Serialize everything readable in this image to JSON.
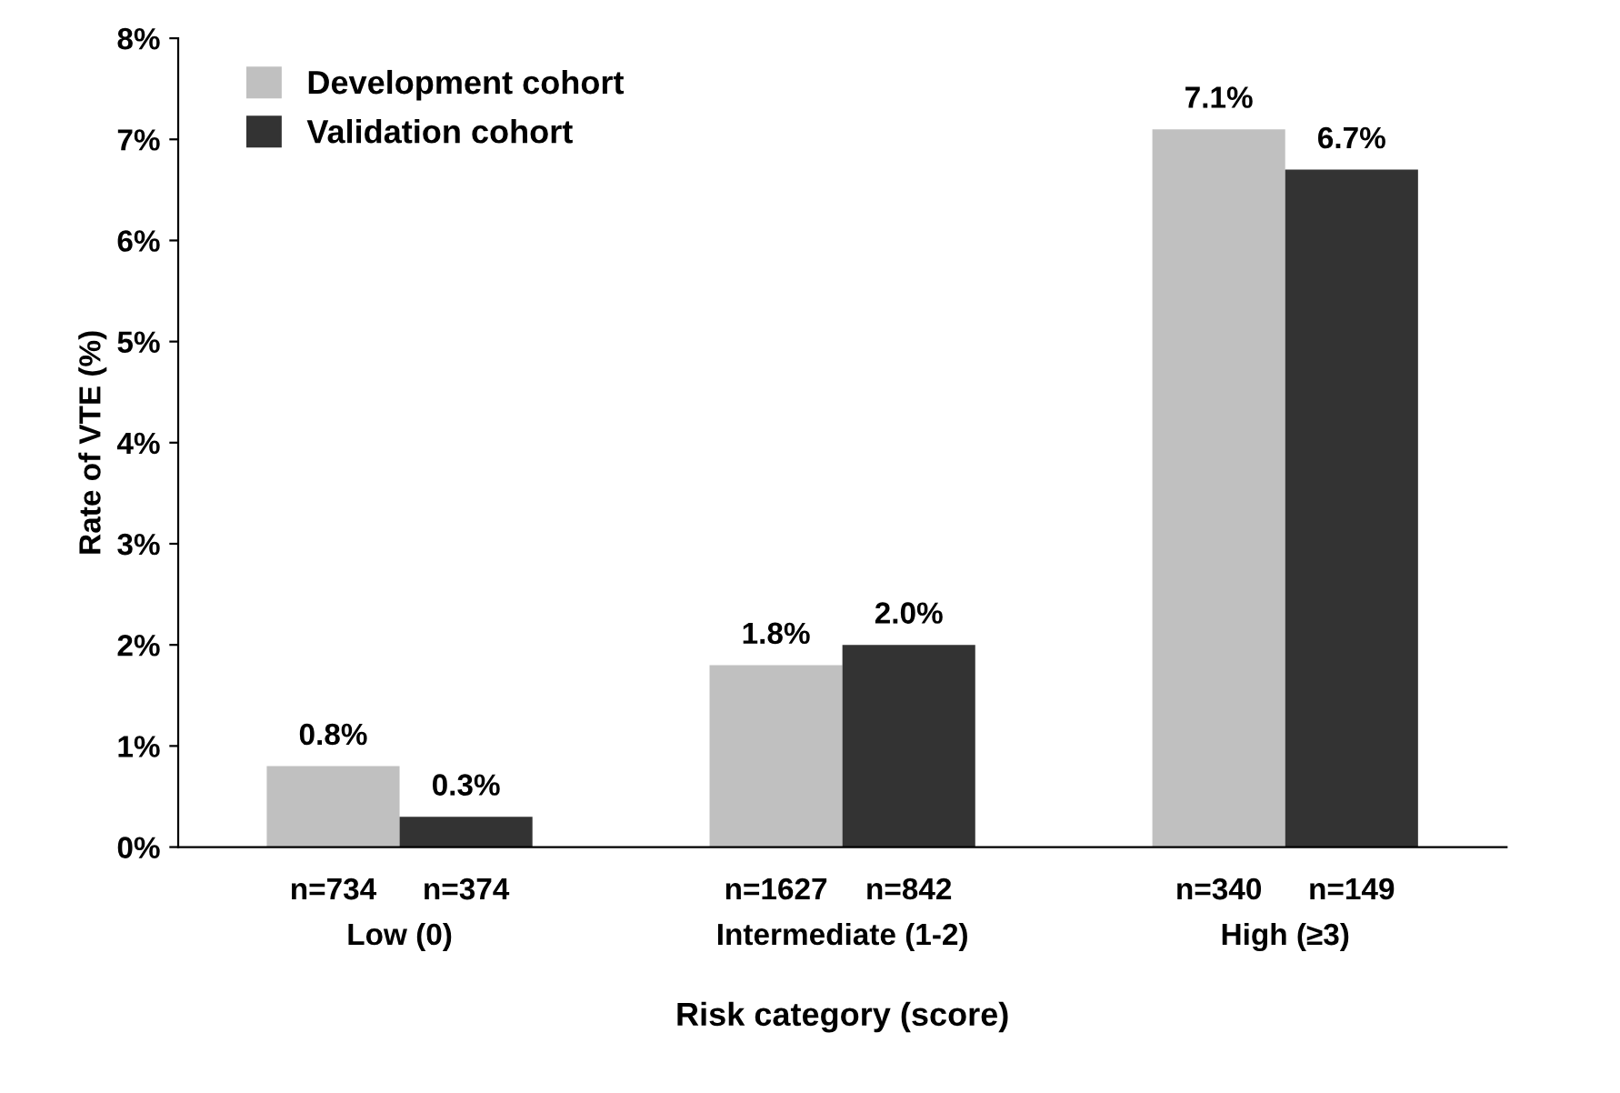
{
  "chart_data": {
    "type": "bar",
    "xlabel": "Risk category (score)",
    "ylabel": "Rate of VTE (%)",
    "categories": [
      "Low (0)",
      "Intermediate (1-2)",
      "High (≥3)"
    ],
    "series": [
      {
        "name": "Development cohort",
        "color": "#c0c0c0",
        "values": [
          0.8,
          1.8,
          7.1
        ],
        "value_labels": [
          "0.8%",
          "1.8%",
          "7.1%"
        ]
      },
      {
        "name": "Validation cohort",
        "color": "#333333",
        "values": [
          0.3,
          2.0,
          6.7
        ],
        "value_labels": [
          "0.3%",
          "2.0%",
          "6.7%"
        ]
      }
    ],
    "ylim": [
      0,
      8
    ],
    "yticks": [
      {
        "value": 0,
        "label": "0%"
      },
      {
        "value": 1,
        "label": "1%"
      },
      {
        "value": 2,
        "label": "2%"
      },
      {
        "value": 3,
        "label": "3%"
      },
      {
        "value": 4,
        "label": "4%"
      },
      {
        "value": 5,
        "label": "5%"
      },
      {
        "value": 6,
        "label": "6%"
      },
      {
        "value": 7,
        "label": "7%"
      },
      {
        "value": 8,
        "label": "8%"
      }
    ],
    "annotations": [
      "n=734",
      "n=374",
      "n=1627",
      "n=842",
      "n=340",
      "n=149"
    ],
    "grid": false,
    "legend": "top left"
  }
}
